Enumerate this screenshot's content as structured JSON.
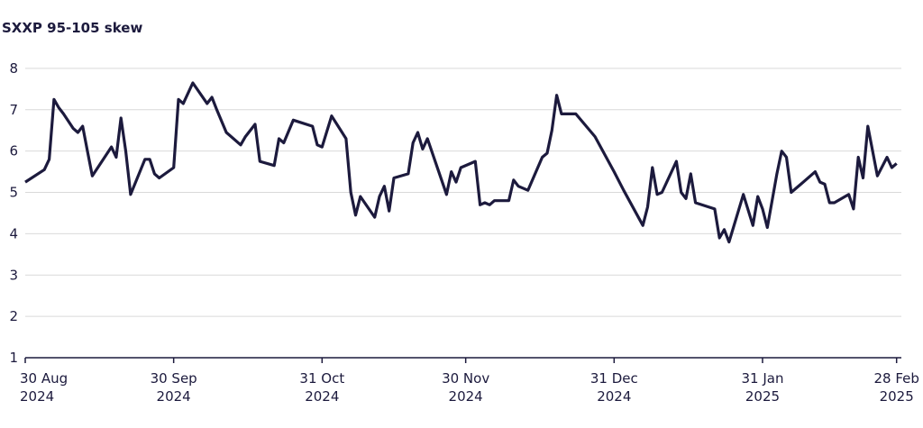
{
  "chart_data": {
    "type": "line",
    "title": "SXXP 95-105 skew",
    "x": [
      "2024-08-30",
      "2024-09-03",
      "2024-09-04",
      "2024-09-05",
      "2024-09-06",
      "2024-09-07",
      "2024-09-09",
      "2024-09-10",
      "2024-09-11",
      "2024-09-12",
      "2024-09-13",
      "2024-09-17",
      "2024-09-18",
      "2024-09-19",
      "2024-09-20",
      "2024-09-21",
      "2024-09-24",
      "2024-09-25",
      "2024-09-26",
      "2024-09-27",
      "2024-09-30",
      "2024-10-01",
      "2024-10-02",
      "2024-10-04",
      "2024-10-07",
      "2024-10-08",
      "2024-10-09",
      "2024-10-11",
      "2024-10-14",
      "2024-10-15",
      "2024-10-17",
      "2024-10-18",
      "2024-10-21",
      "2024-10-22",
      "2024-10-23",
      "2024-10-25",
      "2024-10-29",
      "2024-10-30",
      "2024-10-31",
      "2024-11-02",
      "2024-11-05",
      "2024-11-06",
      "2024-11-07",
      "2024-11-08",
      "2024-11-11",
      "2024-11-12",
      "2024-11-13",
      "2024-11-14",
      "2024-11-15",
      "2024-11-18",
      "2024-11-19",
      "2024-11-20",
      "2024-11-21",
      "2024-11-22",
      "2024-11-26",
      "2024-11-27",
      "2024-11-28",
      "2024-11-29",
      "2024-12-02",
      "2024-12-03",
      "2024-12-04",
      "2024-12-05",
      "2024-12-06",
      "2024-12-09",
      "2024-12-10",
      "2024-12-11",
      "2024-12-13",
      "2024-12-16",
      "2024-12-17",
      "2024-12-18",
      "2024-12-19",
      "2024-12-20",
      "2024-12-23",
      "2024-12-27",
      "2024-12-31",
      "2025-01-02",
      "2025-01-06",
      "2025-01-07",
      "2025-01-08",
      "2025-01-09",
      "2025-01-10",
      "2025-01-13",
      "2025-01-14",
      "2025-01-15",
      "2025-01-16",
      "2025-01-17",
      "2025-01-21",
      "2025-01-22",
      "2025-01-23",
      "2025-01-24",
      "2025-01-27",
      "2025-01-29",
      "2025-01-30",
      "2025-01-31",
      "2025-02-01",
      "2025-02-03",
      "2025-02-04",
      "2025-02-05",
      "2025-02-06",
      "2025-02-08",
      "2025-02-11",
      "2025-02-12",
      "2025-02-13",
      "2025-02-14",
      "2025-02-15",
      "2025-02-18",
      "2025-02-19",
      "2025-02-20",
      "2025-02-21",
      "2025-02-22",
      "2025-02-24",
      "2025-02-26",
      "2025-02-27",
      "2025-02-28"
    ],
    "series": [
      {
        "name": "SXXP 95-105 skew",
        "color": "#1c1a3d",
        "values": [
          5.25,
          5.55,
          5.8,
          7.25,
          7.05,
          6.9,
          6.55,
          6.45,
          6.6,
          6.0,
          5.4,
          6.1,
          5.85,
          6.8,
          6.0,
          4.95,
          5.8,
          5.8,
          5.45,
          5.35,
          5.6,
          7.25,
          7.15,
          7.65,
          7.15,
          7.3,
          7.0,
          6.45,
          6.15,
          6.35,
          6.65,
          5.75,
          5.65,
          6.3,
          6.2,
          6.75,
          6.6,
          6.15,
          6.1,
          6.85,
          6.3,
          5.0,
          4.45,
          4.9,
          4.4,
          4.9,
          5.15,
          4.55,
          5.35,
          5.45,
          6.2,
          6.45,
          6.05,
          6.3,
          4.95,
          5.5,
          5.25,
          5.6,
          5.75,
          4.7,
          4.75,
          4.7,
          4.8,
          4.8,
          5.3,
          5.15,
          5.05,
          5.85,
          5.95,
          6.5,
          7.35,
          6.9,
          6.9,
          6.35,
          5.5,
          5.05,
          4.2,
          4.65,
          5.6,
          4.95,
          5.0,
          5.75,
          5.0,
          4.85,
          5.45,
          4.75,
          4.6,
          3.9,
          4.1,
          3.8,
          4.95,
          4.2,
          4.9,
          4.6,
          4.15,
          5.45,
          6.0,
          5.85,
          5.0,
          5.2,
          5.5,
          5.25,
          5.2,
          4.75,
          4.75,
          4.95,
          4.6,
          5.85,
          5.35,
          6.6,
          5.4,
          5.85,
          5.6,
          5.7
        ]
      }
    ],
    "xlim": [
      "2024-08-30",
      "2025-03-01"
    ],
    "xticks": [
      {
        "value": "2024-08-30",
        "label": [
          "30 Aug",
          "2024"
        ]
      },
      {
        "value": "2024-09-30",
        "label": [
          "30 Sep",
          "2024"
        ]
      },
      {
        "value": "2024-10-31",
        "label": [
          "31 Oct",
          "2024"
        ]
      },
      {
        "value": "2024-11-30",
        "label": [
          "30 Nov",
          "2024"
        ]
      },
      {
        "value": "2024-12-31",
        "label": [
          "31 Dec",
          "2024"
        ]
      },
      {
        "value": "2025-01-31",
        "label": [
          "31 Jan",
          "2025"
        ]
      },
      {
        "value": "2025-02-28",
        "label": [
          "28 Feb",
          "2025"
        ]
      }
    ],
    "ylim": [
      1,
      8.5
    ],
    "yticks": [
      1,
      2,
      3,
      4,
      5,
      6,
      7,
      8
    ],
    "grid": true
  }
}
